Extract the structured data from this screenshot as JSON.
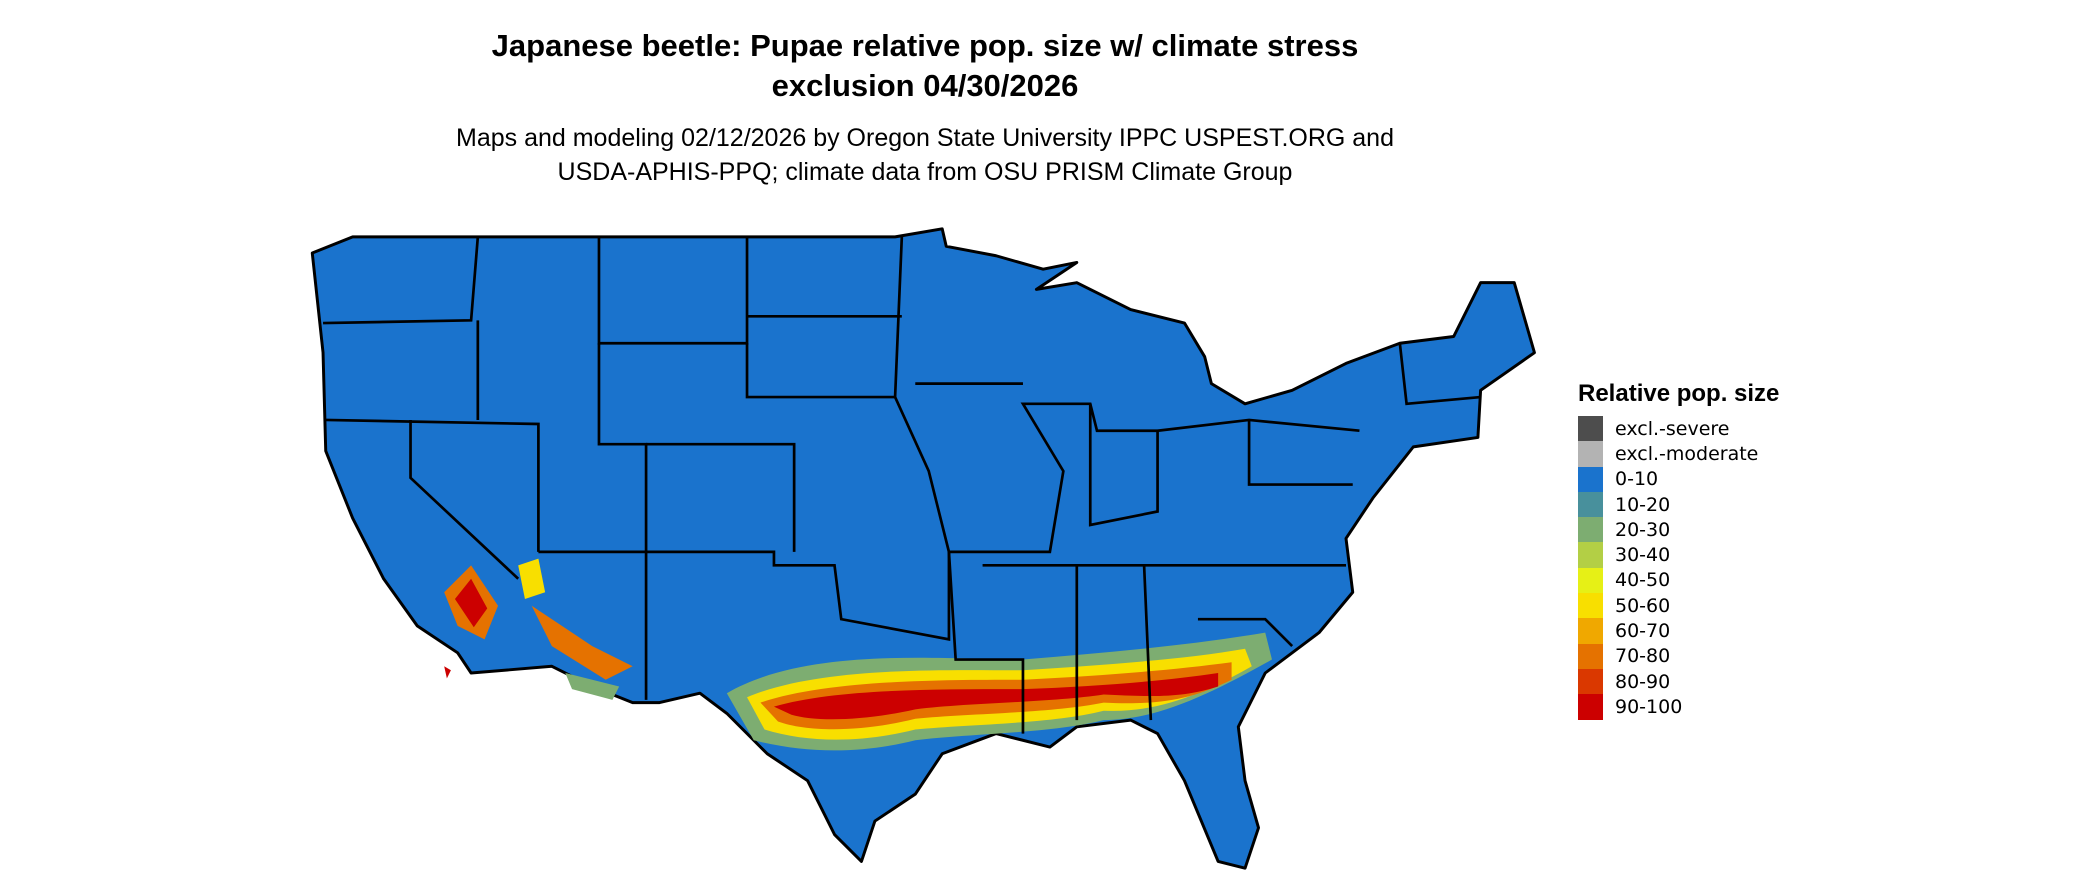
{
  "title": {
    "line1": "Japanese beetle: Pupae relative pop. size w/ climate stress",
    "line2": "exclusion 04/30/2026"
  },
  "subtitle": {
    "line1": "Maps and modeling 02/12/2026 by Oregon State University IPPC USPEST.ORG and",
    "line2": "USDA-APHIS-PPQ; climate data from OSU PRISM Climate Group"
  },
  "map": {
    "region": "Contiguous United States",
    "background_class": "0-10",
    "hotspot_regions": [
      "Gulf coast states band (TX to SC)",
      "Southern California / Arizona deserts"
    ]
  },
  "legend": {
    "title": "Relative pop. size",
    "items": [
      {
        "label": "excl.-severe",
        "color": "#4d4d4d"
      },
      {
        "label": "excl.-moderate",
        "color": "#b3b3b3"
      },
      {
        "label": "0-10",
        "color": "#1a73cd"
      },
      {
        "label": "10-20",
        "color": "#48909c"
      },
      {
        "label": "20-30",
        "color": "#7dad71"
      },
      {
        "label": "30-40",
        "color": "#b3cf45"
      },
      {
        "label": "40-50",
        "color": "#e6f016"
      },
      {
        "label": "50-60",
        "color": "#f8df00"
      },
      {
        "label": "60-70",
        "color": "#f0a800"
      },
      {
        "label": "70-80",
        "color": "#e57200"
      },
      {
        "label": "80-90",
        "color": "#da3800"
      },
      {
        "label": "90-100",
        "color": "#cc0000"
      }
    ]
  }
}
